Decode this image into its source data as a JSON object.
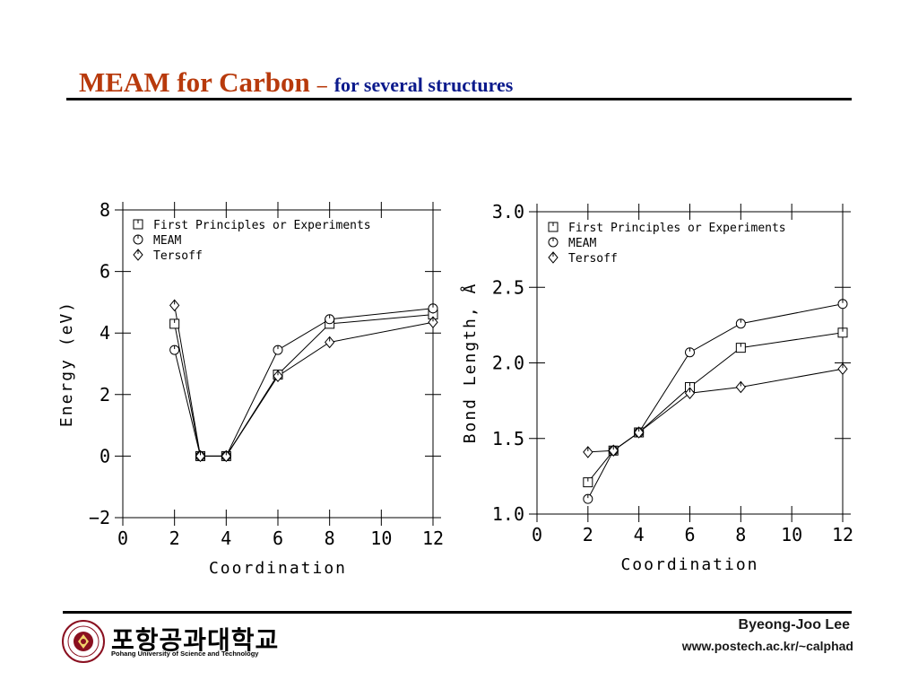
{
  "slide": {
    "title_main": "MEAM for Carbon",
    "title_dash": "–",
    "title_sub": "for several structures",
    "title_main_color": "#b83a0c",
    "title_sub_color": "#0b1a8c"
  },
  "footer": {
    "author": "Byeong-Joo Lee",
    "url": "www.postech.ac.kr/~calphad",
    "university_korean": "포항공과대학교",
    "university_english": "Pohang University of Science and Technology",
    "logo_icon": "university-seal-icon"
  },
  "chart_data": [
    {
      "type": "line",
      "xlabel": "Coordination",
      "ylabel": "Energy (eV)",
      "xlim": [
        0,
        12
      ],
      "ylim": [
        -2,
        8
      ],
      "xticks": [
        0,
        2,
        4,
        6,
        8,
        10,
        12
      ],
      "yticks": [
        -2,
        0,
        2,
        4,
        6,
        8
      ],
      "xtick_labels": [
        "0",
        "2",
        "4",
        "6",
        "8",
        "10",
        "12"
      ],
      "ytick_labels": [
        "−2",
        "0",
        "2",
        "4",
        "6",
        "8"
      ],
      "legend_placement": "top-left",
      "series": [
        {
          "name": "First Principles or Experiments",
          "marker": "square",
          "x": [
            2,
            3,
            4,
            6,
            8,
            12
          ],
          "y": [
            4.3,
            0.0,
            0.0,
            2.65,
            4.3,
            4.6
          ]
        },
        {
          "name": "MEAM",
          "marker": "circle",
          "x": [
            2,
            3,
            4,
            6,
            8,
            12
          ],
          "y": [
            3.45,
            0.0,
            0.0,
            3.45,
            4.45,
            4.8
          ]
        },
        {
          "name": "Tersoff",
          "marker": "diamond",
          "x": [
            2,
            3,
            4,
            6,
            8,
            12
          ],
          "y": [
            4.9,
            0.0,
            0.0,
            2.6,
            3.7,
            4.35
          ]
        }
      ]
    },
    {
      "type": "line",
      "xlabel": "Coordination",
      "ylabel": "Bond Length, Å",
      "xlim": [
        0,
        12
      ],
      "ylim": [
        1.0,
        3.0
      ],
      "xticks": [
        0,
        2,
        4,
        6,
        8,
        10,
        12
      ],
      "yticks": [
        1.0,
        1.5,
        2.0,
        2.5,
        3.0
      ],
      "xtick_labels": [
        "0",
        "2",
        "4",
        "6",
        "8",
        "10",
        "12"
      ],
      "ytick_labels": [
        "1.0",
        "1.5",
        "2.0",
        "2.5",
        "3.0"
      ],
      "legend_placement": "top-left",
      "series": [
        {
          "name": "First Principles or Experiments",
          "marker": "square",
          "x": [
            2,
            3,
            4,
            6,
            8,
            12
          ],
          "y": [
            1.21,
            1.42,
            1.54,
            1.84,
            2.1,
            2.2
          ]
        },
        {
          "name": "MEAM",
          "marker": "circle",
          "x": [
            2,
            3,
            4,
            6,
            8,
            12
          ],
          "y": [
            1.1,
            1.42,
            1.54,
            2.07,
            2.26,
            2.39
          ]
        },
        {
          "name": "Tersoff",
          "marker": "diamond",
          "x": [
            2,
            3,
            4,
            6,
            8,
            12
          ],
          "y": [
            1.41,
            1.42,
            1.54,
            1.8,
            1.84,
            1.96
          ]
        }
      ]
    }
  ]
}
